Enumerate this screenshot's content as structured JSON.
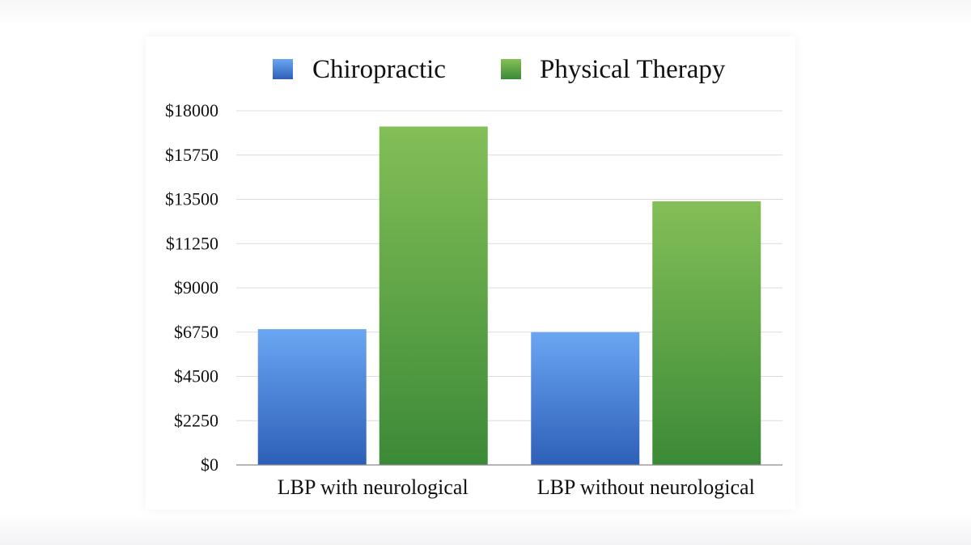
{
  "chart_data": {
    "type": "bar",
    "categories": [
      "LBP with neurological",
      "LBP without neurological"
    ],
    "series": [
      {
        "name": "Chiropractic",
        "values": [
          6900,
          6750
        ]
      },
      {
        "name": "Physical Therapy",
        "values": [
          17200,
          13400
        ]
      }
    ],
    "ylim": [
      0,
      18000
    ],
    "yticks": [
      0,
      2250,
      4500,
      6750,
      9000,
      11250,
      13500,
      15750,
      18000
    ],
    "ytick_labels": [
      "$0",
      "$2250",
      "$4500",
      "$6750",
      "$9000",
      "$11250",
      "$13500",
      "$15750",
      "$18000"
    ],
    "grid": true,
    "legend_position": "top",
    "colors": {
      "Chiropractic": {
        "top": "#6aa6f2",
        "bottom": "#2e5fb8"
      },
      "Physical Therapy": {
        "top": "#84bf57",
        "bottom": "#3b8a37"
      }
    }
  }
}
